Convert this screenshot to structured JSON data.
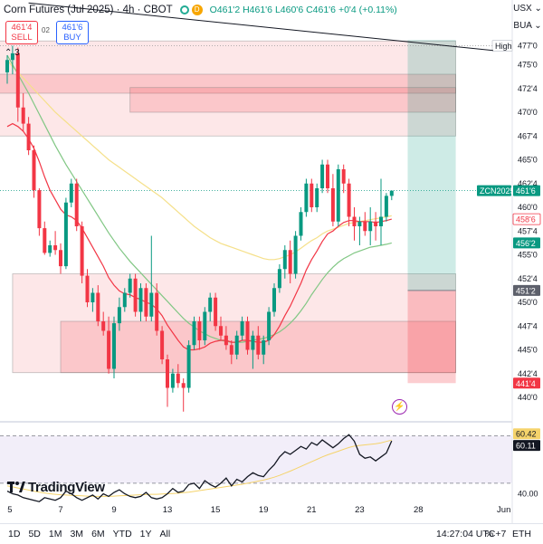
{
  "header": {
    "title": "Corn Futures (Jul 2025) · 4h · CBOT",
    "status_badge": "D",
    "ohlc": {
      "open": "O461'2",
      "high": "H461'6",
      "low": "L460'6",
      "close": "C461'6",
      "change": "+0'4 (+0.11%)"
    },
    "sell_price": "461'4",
    "sell_label": "SELL",
    "spread": "02",
    "buy_price": "461'6",
    "buy_label": "BUY",
    "indicators_count": "3",
    "currency": "USX",
    "unit": "BUA"
  },
  "bottom_bar": {
    "timeframes": [
      "1D",
      "5D",
      "1M",
      "3M",
      "6M",
      "YTD",
      "1Y",
      "All"
    ],
    "clock": "14:27:04 UTC+7",
    "session": "ETH",
    "log_toggle": "%"
  },
  "logo_text": "TradingView",
  "colors": {
    "up": "#089981",
    "down": "#f23645",
    "ma_red": "#f23645",
    "ma_yellow": "#f5e08a",
    "ma_green": "#81c784",
    "rsi": "#131722",
    "rsi_ma": "#f5d36b"
  },
  "chart_data": [
    {
      "type": "candlestick",
      "symbol_label": "ZCN2025",
      "ylim": [
        438,
        478
      ],
      "price_scale_ticks": [
        "477'0",
        "475'0",
        "472'4",
        "470'0",
        "467'4",
        "465'0",
        "462'4",
        "460'0",
        "457'4",
        "455'0",
        "452'4",
        "450'0",
        "447'4",
        "445'0",
        "442'4",
        "440'0"
      ],
      "price_scale_values": [
        477,
        475,
        472.5,
        470,
        467.5,
        465,
        462.5,
        460,
        457.5,
        455,
        452.5,
        450,
        447.5,
        445,
        442.5,
        440
      ],
      "price_labels": [
        {
          "text": "High",
          "value": 477.0,
          "kind": "high"
        },
        {
          "text": "ZCN2025",
          "value": 461.75,
          "kind": "symbol"
        },
        {
          "text": "461'6",
          "value": 461.75,
          "kind": "last"
        },
        {
          "text": "458'6",
          "value": 458.75,
          "kind": "ma_red"
        },
        {
          "text": "456'2",
          "value": 456.25,
          "kind": "ma_green"
        },
        {
          "text": "451'2",
          "value": 451.25,
          "kind": "zone"
        },
        {
          "text": "441'4",
          "value": 441.5,
          "kind": "zone_red"
        }
      ],
      "x_ticks": [
        "5",
        "7",
        "9",
        "13",
        "15",
        "19",
        "21",
        "23",
        "28",
        "Jun"
      ],
      "x_tick_bars": [
        0.5,
        10,
        20,
        30,
        39,
        48,
        57,
        66,
        77,
        93
      ],
      "candles": [
        [
          474.2,
          476.0,
          473.0,
          475.5
        ],
        [
          475.5,
          477.0,
          474.0,
          476.2
        ],
        [
          476.2,
          476.8,
          469.0,
          470.5
        ],
        [
          470.5,
          472.0,
          468.0,
          468.8
        ],
        [
          468.8,
          469.5,
          465.5,
          466.0
        ],
        [
          466.0,
          466.5,
          461.0,
          461.8
        ],
        [
          461.8,
          462.0,
          457.0,
          457.8
        ],
        [
          457.8,
          458.5,
          455.0,
          455.2
        ],
        [
          455.2,
          456.5,
          454.8,
          456.0
        ],
        [
          456.0,
          457.5,
          455.0,
          455.5
        ],
        [
          455.5,
          456.2,
          453.0,
          453.8
        ],
        [
          453.8,
          461.0,
          453.5,
          460.5
        ],
        [
          460.5,
          463.0,
          460.0,
          462.5
        ],
        [
          462.5,
          463.0,
          457.5,
          458.0
        ],
        [
          458.0,
          458.5,
          452.0,
          452.8
        ],
        [
          452.8,
          453.5,
          449.5,
          450.0
        ],
        [
          450.0,
          451.5,
          449.0,
          451.0
        ],
        [
          451.0,
          451.8,
          447.5,
          448.0
        ],
        [
          448.0,
          449.0,
          446.5,
          447.0
        ],
        [
          447.0,
          448.5,
          442.5,
          443.0
        ],
        [
          443.0,
          448.5,
          442.0,
          447.8
        ],
        [
          447.8,
          450.5,
          447.0,
          449.5
        ],
        [
          449.5,
          451.5,
          449.0,
          451.0
        ],
        [
          451.0,
          453.0,
          450.5,
          452.5
        ],
        [
          452.5,
          453.0,
          448.5,
          449.0
        ],
        [
          449.0,
          452.0,
          448.0,
          451.5
        ],
        [
          451.5,
          452.0,
          448.0,
          448.5
        ],
        [
          448.5,
          457.0,
          448.0,
          451.0
        ],
        [
          451.0,
          452.0,
          446.5,
          447.0
        ],
        [
          447.0,
          447.5,
          443.5,
          444.0
        ],
        [
          444.0,
          444.5,
          439.0,
          441.0
        ],
        [
          441.0,
          443.0,
          440.5,
          442.5
        ],
        [
          442.5,
          443.5,
          441.0,
          441.5
        ],
        [
          441.5,
          442.0,
          438.5,
          441.0
        ],
        [
          441.0,
          446.0,
          440.5,
          445.5
        ],
        [
          445.5,
          448.5,
          445.0,
          448.0
        ],
        [
          448.0,
          448.5,
          445.0,
          446.0
        ],
        [
          446.0,
          449.5,
          445.5,
          449.0
        ],
        [
          449.0,
          451.0,
          448.0,
          450.5
        ],
        [
          450.5,
          451.0,
          447.0,
          447.5
        ],
        [
          447.5,
          448.5,
          446.0,
          446.5
        ],
        [
          446.5,
          447.5,
          445.0,
          445.5
        ],
        [
          445.5,
          446.0,
          443.5,
          444.5
        ],
        [
          444.5,
          447.0,
          444.0,
          446.5
        ],
        [
          446.5,
          448.5,
          446.0,
          448.0
        ],
        [
          448.0,
          448.5,
          444.5,
          445.0
        ],
        [
          445.0,
          447.0,
          443.0,
          446.5
        ],
        [
          446.5,
          447.5,
          444.0,
          444.5
        ],
        [
          444.5,
          446.5,
          443.5,
          446.0
        ],
        [
          446.0,
          449.5,
          445.5,
          449.0
        ],
        [
          449.0,
          452.0,
          448.5,
          451.5
        ],
        [
          451.5,
          454.0,
          451.0,
          453.5
        ],
        [
          453.5,
          456.0,
          452.5,
          455.5
        ],
        [
          455.5,
          456.5,
          452.0,
          453.0
        ],
        [
          453.0,
          457.5,
          452.5,
          457.0
        ],
        [
          457.0,
          460.0,
          456.5,
          459.5
        ],
        [
          459.5,
          463.0,
          459.0,
          462.5
        ],
        [
          462.5,
          463.0,
          459.5,
          460.0
        ],
        [
          460.0,
          462.5,
          459.5,
          462.0
        ],
        [
          462.0,
          465.0,
          461.5,
          464.5
        ],
        [
          464.5,
          465.0,
          461.5,
          462.0
        ],
        [
          462.0,
          463.5,
          458.0,
          458.5
        ],
        [
          458.5,
          464.5,
          458.0,
          464.0
        ],
        [
          464.0,
          464.5,
          461.5,
          462.5
        ],
        [
          462.5,
          463.0,
          458.0,
          459.0
        ],
        [
          459.0,
          460.0,
          456.5,
          458.0
        ],
        [
          458.0,
          459.0,
          456.0,
          458.5
        ],
        [
          458.5,
          459.5,
          457.0,
          457.5
        ],
        [
          457.5,
          460.0,
          456.0,
          458.5
        ],
        [
          458.5,
          459.5,
          456.5,
          458.0
        ],
        [
          458.0,
          463.0,
          456.0,
          459.0
        ],
        [
          459.0,
          461.5,
          458.5,
          461.2
        ],
        [
          461.2,
          461.75,
          460.75,
          461.75
        ]
      ],
      "ma_red": [
        468.5,
        468.8,
        468.5,
        468.0,
        467.2,
        466.2,
        464.8,
        463.2,
        461.8,
        460.8,
        459.8,
        459.2,
        459.0,
        458.6,
        457.8,
        456.8,
        455.8,
        454.8,
        453.8,
        452.6,
        451.8,
        451.2,
        450.9,
        450.8,
        450.5,
        450.3,
        450.0,
        449.8,
        449.3,
        448.6,
        447.6,
        446.8,
        446.0,
        445.3,
        445.0,
        445.0,
        445.1,
        445.3,
        445.7,
        445.9,
        446.0,
        446.0,
        445.8,
        445.8,
        446.0,
        446.0,
        445.9,
        445.8,
        445.8,
        446.0,
        446.6,
        447.5,
        448.6,
        449.6,
        450.8,
        452.0,
        453.4,
        454.5,
        455.4,
        456.4,
        457.2,
        457.5,
        458.0,
        458.4,
        458.6,
        458.6,
        458.5,
        458.5,
        458.5,
        458.4,
        458.5,
        458.6,
        458.75
      ],
      "ma_yellow": [
        475.5,
        474.8,
        474.2,
        473.6,
        473.0,
        472.4,
        471.8,
        471.2,
        470.6,
        470.0,
        469.5,
        469.0,
        468.5,
        468.0,
        467.5,
        467.0,
        466.5,
        466.0,
        465.5,
        465.0,
        464.6,
        464.2,
        463.8,
        463.4,
        463.0,
        462.6,
        462.2,
        461.8,
        461.4,
        461.0,
        460.5,
        460.0,
        459.5,
        459.0,
        458.5,
        458.0,
        457.6,
        457.2,
        456.8,
        456.5,
        456.2,
        456.0,
        455.8,
        455.6,
        455.4,
        455.2,
        455.0,
        454.8,
        454.6,
        454.5,
        454.5,
        454.6,
        454.8,
        455.0,
        455.3,
        455.7,
        456.1,
        456.5,
        456.8,
        457.2,
        457.5,
        457.7,
        457.9,
        458.1,
        458.3,
        458.4,
        458.5,
        458.6,
        458.7,
        458.8,
        458.9,
        459.0,
        459.1
      ],
      "ma_green": [
        476.0,
        475.0,
        474.0,
        473.0,
        472.0,
        470.9,
        469.8,
        468.7,
        467.6,
        466.5,
        465.5,
        464.5,
        463.6,
        462.7,
        461.8,
        460.9,
        460.0,
        459.1,
        458.2,
        457.3,
        456.5,
        455.7,
        455.0,
        454.3,
        453.7,
        453.1,
        452.5,
        451.9,
        451.3,
        450.7,
        450.1,
        449.5,
        448.9,
        448.3,
        447.8,
        447.4,
        447.0,
        446.7,
        446.4,
        446.2,
        446.0,
        445.9,
        445.8,
        445.8,
        445.8,
        445.9,
        446.0,
        446.1,
        446.2,
        446.4,
        446.6,
        446.9,
        447.3,
        447.8,
        448.4,
        449.1,
        449.9,
        450.8,
        451.6,
        452.4,
        453.1,
        453.7,
        454.2,
        454.6,
        454.9,
        455.2,
        455.4,
        455.6,
        455.8,
        455.9,
        456.0,
        456.1,
        456.25
      ],
      "zones": [
        {
          "kind": "red",
          "from_bar": -2,
          "to_bar": 84,
          "low": 467.5,
          "high": 477.5
        },
        {
          "kind": "red_dark",
          "from_bar": -2,
          "to_bar": 84,
          "low": 472.0,
          "high": 474.0
        },
        {
          "kind": "red_dark",
          "from_bar": 23,
          "to_bar": 84,
          "low": 470.0,
          "high": 472.6
        },
        {
          "kind": "red",
          "from_bar": 1,
          "to_bar": 84,
          "low": 442.6,
          "high": 453.0
        },
        {
          "kind": "red_dark",
          "from_bar": 10,
          "to_bar": 84,
          "low": 442.6,
          "high": 448.0
        }
      ],
      "position": {
        "from_bar": 75,
        "to_bar": 84,
        "entry": 451.25,
        "target": 477.6,
        "stop": 441.5
      },
      "trendline": {
        "from_bar": 4,
        "from_price": 481.5,
        "to_bar": 91,
        "to_price": 476.5
      }
    },
    {
      "type": "line",
      "indicator": "RSI",
      "ylim": [
        35,
        66
      ],
      "scale_ticks": [
        "40.00"
      ],
      "scale_tick_values": [
        40
      ],
      "value_labels": [
        {
          "text": "60.42",
          "value": 60.42,
          "kind": "rsi_ma"
        },
        {
          "text": "60.11",
          "value": 60.11,
          "kind": "rsi"
        }
      ],
      "band_upper": 62,
      "band_lower": 44,
      "rsi": [
        41.0,
        40.0,
        39.5,
        38.5,
        38.0,
        37.5,
        37.0,
        38.5,
        38.0,
        37.5,
        38.5,
        41.0,
        40.0,
        38.5,
        37.5,
        38.5,
        39.5,
        38.0,
        40.0,
        39.0,
        40.5,
        41.5,
        40.0,
        39.0,
        38.5,
        39.0,
        40.5,
        38.5,
        38.0,
        38.5,
        40.0,
        42.0,
        40.5,
        41.0,
        43.5,
        44.0,
        42.0,
        45.0,
        43.5,
        42.5,
        44.0,
        46.0,
        43.0,
        45.5,
        44.5,
        46.5,
        48.0,
        47.0,
        46.5,
        49.0,
        51.0,
        54.0,
        56.0,
        55.0,
        56.5,
        58.0,
        57.0,
        59.5,
        58.5,
        60.5,
        59.0,
        57.5,
        59.0,
        61.0,
        62.5,
        60.0,
        55.0,
        53.5,
        54.0,
        52.5,
        54.0,
        55.5,
        60.11
      ],
      "rsi_ma": [
        43.0,
        42.6,
        42.2,
        41.8,
        41.4,
        41.0,
        40.6,
        40.3,
        40.0,
        39.8,
        39.6,
        39.5,
        39.4,
        39.3,
        39.2,
        39.1,
        39.0,
        39.0,
        39.0,
        39.0,
        39.1,
        39.2,
        39.3,
        39.4,
        39.5,
        39.6,
        39.7,
        39.8,
        39.8,
        39.9,
        40.0,
        40.1,
        40.2,
        40.4,
        40.6,
        40.9,
        41.2,
        41.5,
        41.8,
        42.1,
        42.4,
        42.7,
        43.0,
        43.3,
        43.6,
        44.0,
        44.4,
        44.8,
        45.2,
        45.7,
        46.3,
        47.0,
        47.8,
        48.6,
        49.5,
        50.4,
        51.3,
        52.2,
        53.1,
        54.0,
        54.8,
        55.5,
        56.2,
        56.9,
        57.6,
        58.1,
        58.4,
        58.6,
        58.8,
        59.0,
        59.4,
        59.9,
        60.42
      ]
    }
  ]
}
